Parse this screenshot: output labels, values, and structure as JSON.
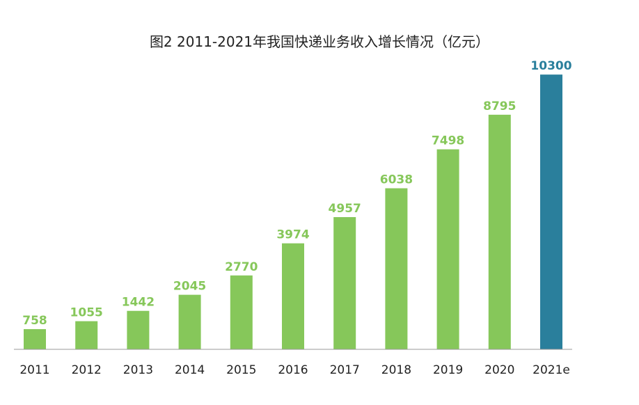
{
  "chart_data": {
    "type": "bar",
    "title": "图2 2011-2021年我国快递业务收入增长情况（亿元）",
    "xlabel": "",
    "ylabel": "",
    "categories": [
      "2011",
      "2012",
      "2013",
      "2014",
      "2015",
      "2016",
      "2017",
      "2018",
      "2019",
      "2020",
      "2021e"
    ],
    "values": [
      758,
      1055,
      1442,
      2045,
      2770,
      3974,
      4957,
      6038,
      7498,
      8795,
      10300
    ],
    "value_labels": [
      "758",
      "1055",
      "1442",
      "2045",
      "2770",
      "3974",
      "4957",
      "6038",
      "7498",
      "8795",
      "10300"
    ],
    "ylim": [
      0,
      10800
    ],
    "grid": false,
    "legend": "none",
    "colors": {
      "actual_bar": "#86c75a",
      "estimate_bar": "#2a7f9c",
      "actual_label": "#86c75a",
      "estimate_label": "#2a7f9c",
      "axis": "#9a9a9a"
    },
    "estimate_index": 10
  }
}
